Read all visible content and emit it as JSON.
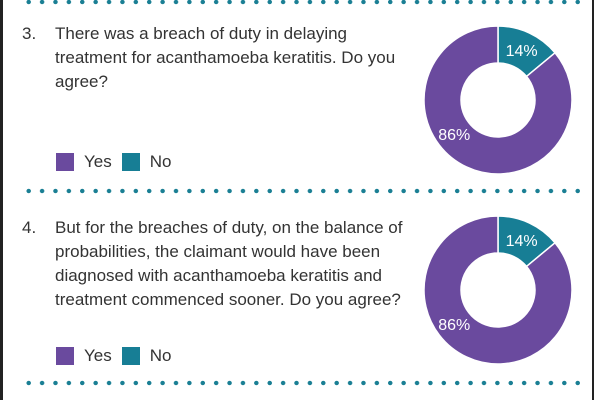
{
  "colors": {
    "yes": "#6a4a9e",
    "no": "#177e95",
    "dots": "#1a7f94"
  },
  "chart_data": [
    {
      "type": "pie",
      "style": "donut",
      "title": "There was a breach of duty in delaying treatment for acanthamoeba keratitis. Do you agree?",
      "categories": [
        "Yes",
        "No"
      ],
      "values": [
        86,
        14
      ],
      "labels": [
        "86%",
        "14%"
      ]
    },
    {
      "type": "pie",
      "style": "donut",
      "title": "But for the breaches of duty, on the balance of probabilities, the claimant would have been diagnosed with acanthamoeba keratitis and treatment commenced sooner. Do you agree?",
      "categories": [
        "Yes",
        "No"
      ],
      "values": [
        86,
        14
      ],
      "labels": [
        "86%",
        "14%"
      ]
    }
  ],
  "questions": [
    {
      "number": "3.",
      "text": "There was a breach of duty in delaying treatment for acanthamoeba keratitis. Do you agree?"
    },
    {
      "number": "4.",
      "text": "But for the breaches of duty, on the balance of probabilities, the claimant would have been diagnosed with acanthamoeba keratitis and treatment commenced sooner. Do you agree?"
    }
  ],
  "legend": {
    "yes": "Yes",
    "no": "No"
  }
}
